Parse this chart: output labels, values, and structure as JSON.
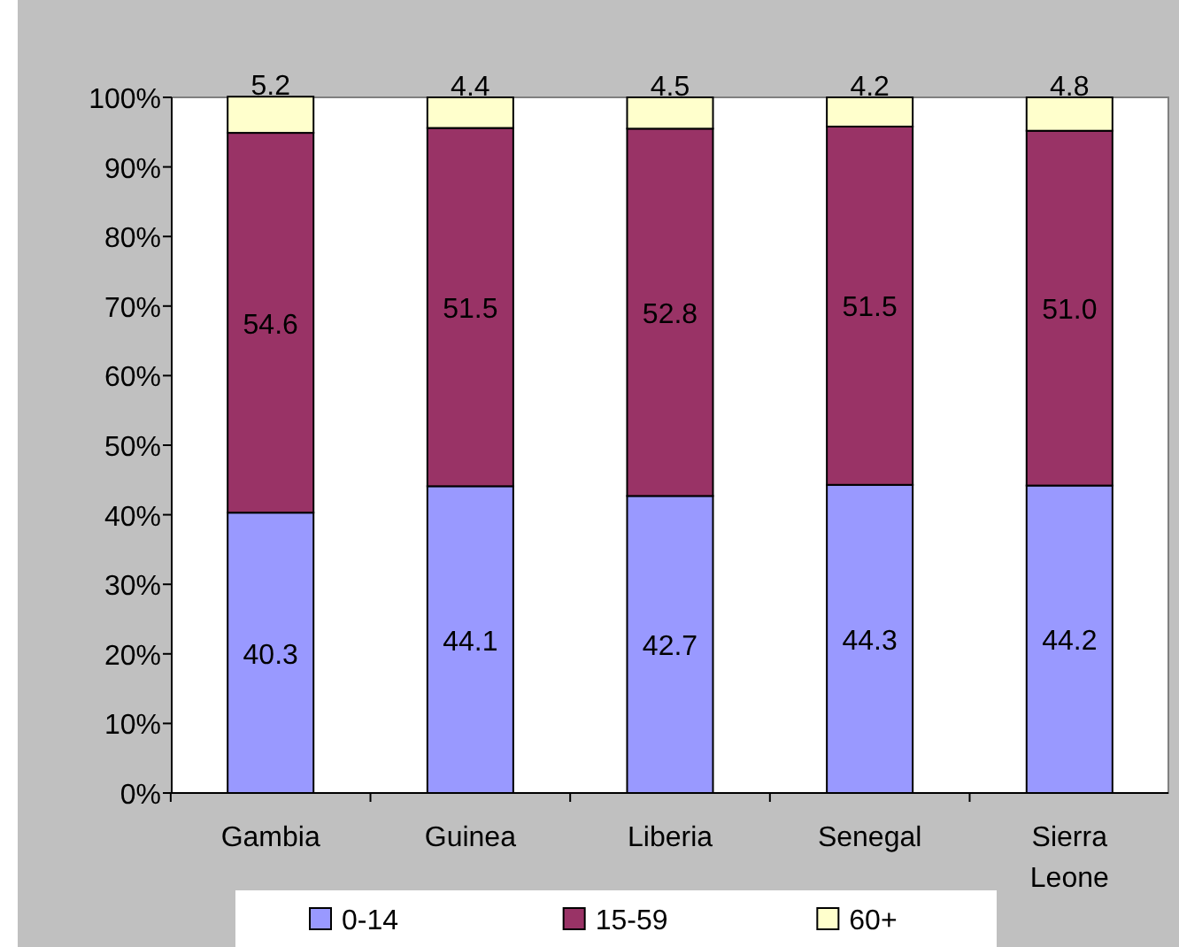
{
  "chart_data": {
    "type": "bar",
    "stacked": true,
    "data_labels": true,
    "legend": "bottom",
    "grid": false,
    "categories": [
      "Gambia",
      "Guinea",
      "Liberia",
      "Senegal",
      "Sierra Leone"
    ],
    "series": [
      {
        "name": "0-14",
        "color": "#9999ff",
        "values": [
          40.3,
          44.1,
          42.7,
          44.3,
          44.2
        ]
      },
      {
        "name": "15-59",
        "color": "#993366",
        "values": [
          54.6,
          51.5,
          52.8,
          51.5,
          51.0
        ],
        "value_labels": [
          "54.6",
          "51.5",
          "52.8",
          "51.5",
          "51.0"
        ]
      },
      {
        "name": "60+",
        "color": "#ffffcc",
        "values": [
          5.2,
          4.4,
          4.5,
          4.2,
          4.8
        ]
      }
    ],
    "ylim": [
      0,
      100
    ],
    "yticks": [
      {
        "value": 0,
        "label": "0%"
      },
      {
        "value": 10,
        "label": "10%"
      },
      {
        "value": 20,
        "label": "20%"
      },
      {
        "value": 30,
        "label": "30%"
      },
      {
        "value": 40,
        "label": "40%"
      },
      {
        "value": 50,
        "label": "50%"
      },
      {
        "value": 60,
        "label": "60%"
      },
      {
        "value": 70,
        "label": "70%"
      },
      {
        "value": 80,
        "label": "80%"
      },
      {
        "value": 90,
        "label": "90%"
      },
      {
        "value": 100,
        "label": "100%"
      }
    ]
  }
}
